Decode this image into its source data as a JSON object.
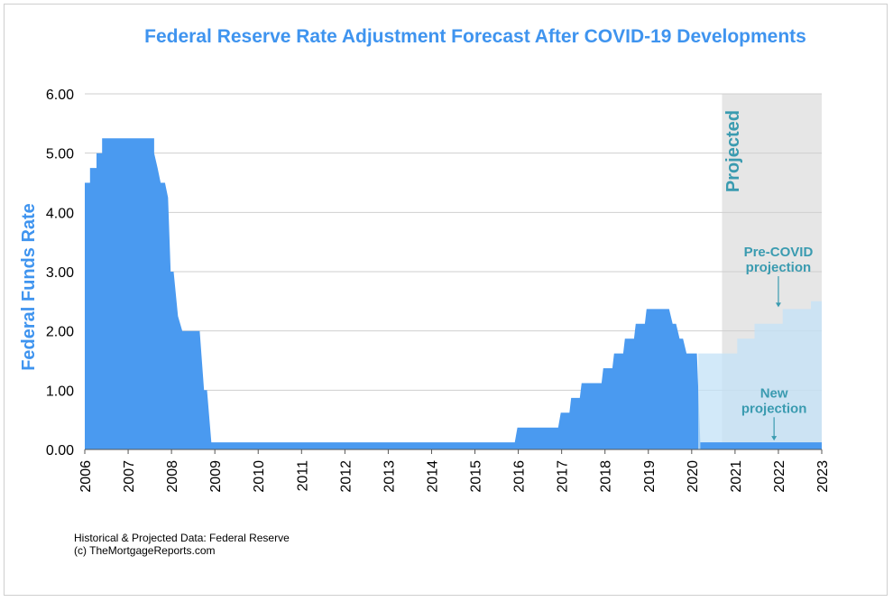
{
  "chart_data": {
    "type": "area",
    "title": "Federal Reserve Rate Adjustment Forecast After COVID-19 Developments",
    "xlabel": "",
    "ylabel": "Federal Funds Rate",
    "xlim": [
      2006,
      2023
    ],
    "ylim": [
      0,
      6
    ],
    "yticks": [
      "0.00",
      "1.00",
      "2.00",
      "3.00",
      "4.00",
      "5.00",
      "6.00"
    ],
    "xticks": [
      "2006",
      "2007",
      "2008",
      "2009",
      "2010",
      "2011",
      "2012",
      "2013",
      "2014",
      "2015",
      "2016",
      "2017",
      "2018",
      "2019",
      "2020",
      "2021",
      "2022",
      "2023"
    ],
    "grid": true,
    "projected_region": {
      "label": "Projected",
      "start": 2020.7,
      "end": 2023
    },
    "series": [
      {
        "name": "",
        "color": "#4a9af0",
        "points": [
          [
            2006.0,
            4.5
          ],
          [
            2006.12,
            4.5
          ],
          [
            2006.12,
            4.75
          ],
          [
            2006.27,
            4.75
          ],
          [
            2006.27,
            5.0
          ],
          [
            2006.4,
            5.0
          ],
          [
            2006.4,
            5.25
          ],
          [
            2007.6,
            5.25
          ],
          [
            2007.6,
            5.0
          ],
          [
            2007.68,
            4.75
          ],
          [
            2007.75,
            4.5
          ],
          [
            2007.85,
            4.5
          ],
          [
            2007.92,
            4.25
          ],
          [
            2007.98,
            3.0
          ],
          [
            2008.05,
            3.0
          ],
          [
            2008.15,
            2.25
          ],
          [
            2008.25,
            2.0
          ],
          [
            2008.65,
            2.0
          ],
          [
            2008.75,
            1.0
          ],
          [
            2008.82,
            1.0
          ],
          [
            2008.92,
            0.12
          ],
          [
            2015.92,
            0.12
          ],
          [
            2015.98,
            0.37
          ],
          [
            2016.92,
            0.37
          ],
          [
            2016.98,
            0.62
          ],
          [
            2017.18,
            0.62
          ],
          [
            2017.22,
            0.87
          ],
          [
            2017.42,
            0.87
          ],
          [
            2017.46,
            1.12
          ],
          [
            2017.92,
            1.12
          ],
          [
            2017.96,
            1.37
          ],
          [
            2018.17,
            1.37
          ],
          [
            2018.21,
            1.62
          ],
          [
            2018.42,
            1.62
          ],
          [
            2018.46,
            1.87
          ],
          [
            2018.67,
            1.87
          ],
          [
            2018.71,
            2.12
          ],
          [
            2018.92,
            2.12
          ],
          [
            2018.96,
            2.37
          ],
          [
            2019.48,
            2.37
          ],
          [
            2019.56,
            2.12
          ],
          [
            2019.64,
            2.12
          ],
          [
            2019.72,
            1.87
          ],
          [
            2019.8,
            1.87
          ],
          [
            2019.88,
            1.62
          ],
          [
            2020.12,
            1.62
          ],
          [
            2020.2,
            0.12
          ],
          [
            2023.0,
            0.12
          ]
        ]
      },
      {
        "name": "Pre-COVID projection",
        "color": "#c3e2f7",
        "points": [
          [
            2020.15,
            1.62
          ],
          [
            2021.05,
            1.62
          ],
          [
            2021.05,
            1.87
          ],
          [
            2021.45,
            1.87
          ],
          [
            2021.45,
            2.12
          ],
          [
            2022.1,
            2.12
          ],
          [
            2022.1,
            2.37
          ],
          [
            2022.75,
            2.37
          ],
          [
            2022.75,
            2.5
          ],
          [
            2023.0,
            2.5
          ]
        ]
      }
    ],
    "annotations": [
      {
        "text": [
          "Pre-COVID",
          "projection"
        ],
        "x": 2022.0,
        "y": 3.0,
        "arrow_to": [
          2022.0,
          2.37
        ]
      },
      {
        "text": [
          "New",
          "projection"
        ],
        "x": 2021.9,
        "y": 0.62,
        "arrow_to": [
          2021.9,
          0.12
        ]
      }
    ],
    "source_lines": [
      "Historical & Projected Data: Federal Reserve",
      "(c) TheMortgageReports.com"
    ],
    "colors": {
      "title": "#3f94ef",
      "annotation": "#3a9bb0",
      "projected_bg": "#e6e6e6"
    }
  }
}
